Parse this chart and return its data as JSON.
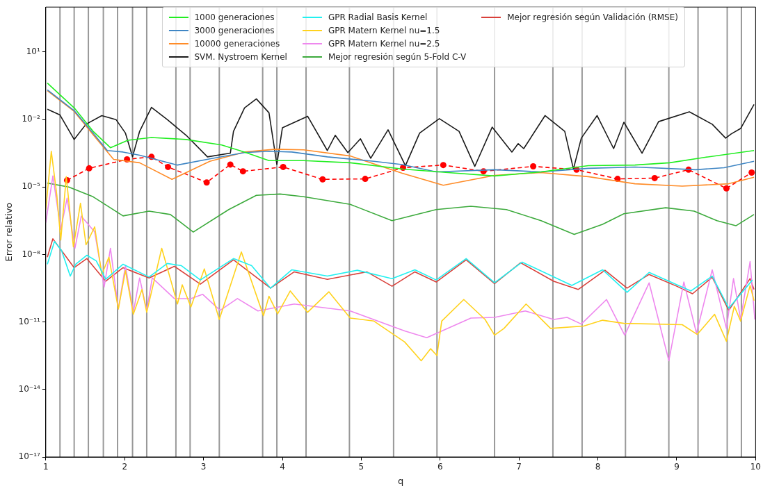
{
  "chart_data": {
    "type": "line",
    "xlabel": "q",
    "ylabel": "Error relativo",
    "log": "y",
    "grid": false,
    "legend": "top",
    "marker": "none",
    "line_style": "solid",
    "xlim": [
      1,
      10
    ],
    "xticks": [
      1,
      2,
      3,
      4,
      5,
      6,
      7,
      8,
      9,
      10
    ],
    "ylim": [
      1e-17,
      1000
    ],
    "yticks": [
      {
        "value": 1e-17,
        "label": "10⁻¹⁷"
      },
      {
        "value": 1e-14,
        "label": "10⁻¹⁴"
      },
      {
        "value": 1e-11,
        "label": "10⁻¹¹"
      },
      {
        "value": 1e-08,
        "label": "10⁻⁸"
      },
      {
        "value": 1e-05,
        "label": "10⁻⁵"
      },
      {
        "value": 0.01,
        "label": "10⁻²"
      },
      {
        "value": 10,
        "label": "10¹"
      }
    ],
    "ref_lines": [
      {
        "axis": "x",
        "value": 1.18,
        "color": "#999999"
      },
      {
        "axis": "x",
        "value": 1.36,
        "color": "#999999"
      },
      {
        "axis": "x",
        "value": 1.54,
        "color": "#999999"
      },
      {
        "axis": "x",
        "value": 1.73,
        "color": "#999999"
      },
      {
        "axis": "x",
        "value": 1.91,
        "color": "#999999"
      },
      {
        "axis": "x",
        "value": 2.1,
        "color": "#999999"
      },
      {
        "axis": "x",
        "value": 2.28,
        "color": "#999999"
      },
      {
        "axis": "x",
        "value": 2.65,
        "color": "#999999"
      },
      {
        "axis": "x",
        "value": 2.83,
        "color": "#999999"
      },
      {
        "axis": "x",
        "value": 3.2,
        "color": "#999999"
      },
      {
        "axis": "x",
        "value": 3.75,
        "color": "#999999"
      },
      {
        "axis": "x",
        "value": 3.93,
        "color": "#999999"
      },
      {
        "axis": "x",
        "value": 4.3,
        "color": "#999999"
      },
      {
        "axis": "x",
        "value": 4.85,
        "color": "#999999"
      },
      {
        "axis": "x",
        "value": 5.41,
        "color": "#999999"
      },
      {
        "axis": "x",
        "value": 5.96,
        "color": "#999999"
      },
      {
        "axis": "x",
        "value": 6.69,
        "color": "#999999"
      },
      {
        "axis": "x",
        "value": 7.43,
        "color": "#999999"
      },
      {
        "axis": "x",
        "value": 7.8,
        "color": "#999999"
      },
      {
        "axis": "x",
        "value": 8.35,
        "color": "#999999"
      },
      {
        "axis": "x",
        "value": 8.9,
        "color": "#999999"
      },
      {
        "axis": "x",
        "value": 9.27,
        "color": "#999999"
      },
      {
        "axis": "x",
        "value": 9.64,
        "color": "#999999"
      },
      {
        "axis": "x",
        "value": 9.82,
        "color": "#999999"
      }
    ],
    "series": [
      {
        "name": "1000 generaciones",
        "color": "#22ee22",
        "x": [
          1.02,
          1.36,
          1.6,
          1.82,
          2.04,
          2.34,
          2.78,
          3.23,
          3.52,
          3.83,
          4.27,
          4.86,
          5.53,
          6.1,
          6.69,
          7.28,
          7.88,
          8.47,
          8.91,
          9.36,
          9.98
        ],
        "values": [
          0.42,
          0.033,
          0.003,
          0.00056,
          0.0012,
          0.0016,
          0.0013,
          0.00074,
          0.00036,
          0.00015,
          0.00015,
          0.00012,
          6.3e-05,
          4.4e-05,
          3.1e-05,
          4.7e-05,
          8.9e-05,
          9.5e-05,
          0.00012,
          0.00021,
          0.00042
        ]
      },
      {
        "name": "3000 generaciones",
        "color": "#3f86c4",
        "x": [
          1.02,
          1.36,
          1.6,
          1.78,
          1.98,
          2.19,
          2.67,
          3.08,
          3.52,
          3.83,
          4.12,
          4.57,
          5.16,
          5.52,
          5.95,
          6.69,
          7.28,
          7.88,
          8.47,
          9.24,
          9.6,
          9.98
        ],
        "values": [
          0.21,
          0.025,
          0.0025,
          0.00042,
          0.00036,
          0.00026,
          9.5e-05,
          0.00018,
          0.00034,
          0.00039,
          0.00036,
          0.00022,
          0.00014,
          0.0001,
          4.7e-05,
          5.9e-05,
          4.7e-05,
          6.8e-05,
          7.8e-05,
          5.9e-05,
          7.2e-05,
          0.00014
        ]
      },
      {
        "name": "10000 generaciones",
        "color": "#ff8c28",
        "x": [
          1.02,
          1.36,
          1.6,
          1.86,
          2.19,
          2.6,
          2.78,
          3.08,
          3.52,
          3.91,
          4.27,
          4.86,
          5.52,
          6.04,
          6.69,
          7.28,
          7.88,
          8.47,
          9.07,
          9.66,
          9.98
        ],
        "values": [
          0.19,
          0.023,
          0.0021,
          0.00017,
          0.00012,
          2.2e-05,
          4.4e-05,
          0.00014,
          0.00036,
          0.00048,
          0.00045,
          0.00024,
          4.1e-05,
          1.2e-05,
          3.3e-05,
          4.4e-05,
          2.9e-05,
          1.4e-05,
          1.1e-05,
          1.4e-05,
          2.7e-05
        ]
      },
      {
        "name": "SVM. Nystroem Kernel",
        "color": "#1a1a1a",
        "x": [
          1.02,
          1.18,
          1.36,
          1.51,
          1.71,
          1.89,
          2.01,
          2.1,
          2.19,
          2.34,
          2.54,
          2.78,
          3.05,
          3.34,
          3.38,
          3.52,
          3.67,
          3.83,
          3.93,
          4.0,
          4.32,
          4.57,
          4.67,
          4.83,
          4.99,
          5.12,
          5.34,
          5.56,
          5.74,
          5.99,
          6.24,
          6.44,
          6.66,
          6.91,
          6.99,
          7.06,
          7.33,
          7.58,
          7.69,
          7.79,
          7.99,
          8.2,
          8.33,
          8.56,
          8.77,
          9.16,
          9.45,
          9.62,
          9.69,
          9.81,
          9.98
        ],
        "values": [
          0.029,
          0.016,
          0.0013,
          0.0062,
          0.015,
          0.01,
          0.0025,
          0.00022,
          0.003,
          0.035,
          0.01,
          0.002,
          0.00022,
          0.00032,
          0.003,
          0.033,
          0.083,
          0.02,
          0.0001,
          0.0043,
          0.014,
          0.00042,
          0.002,
          0.00034,
          0.0014,
          0.00019,
          0.0035,
          8.9e-05,
          0.0025,
          0.011,
          0.003,
          8.3e-05,
          0.0046,
          0.00036,
          0.00085,
          0.00051,
          0.015,
          0.003,
          6.3e-05,
          0.0015,
          0.015,
          0.00051,
          0.0076,
          0.00032,
          0.0081,
          0.022,
          0.0062,
          0.0015,
          0.0023,
          0.004,
          0.047
        ]
      },
      {
        "name": "GPR Radial Basis Kernel",
        "color": "#22f0f0",
        "x": [
          1.02,
          1.11,
          1.2,
          1.31,
          1.38,
          1.52,
          1.64,
          1.76,
          1.98,
          2.31,
          2.54,
          2.72,
          2.96,
          3.38,
          3.61,
          3.85,
          4.12,
          4.57,
          4.95,
          5.39,
          5.68,
          5.95,
          6.33,
          6.69,
          7.04,
          7.67,
          8.06,
          8.37,
          8.65,
          9.18,
          9.45,
          9.66,
          9.96
        ],
        "values": [
          3.7e-09,
          3.8e-08,
          1.5e-08,
          1.1e-09,
          3.7e-09,
          9.3e-09,
          5.2e-09,
          7.9e-10,
          3.7e-09,
          1e-09,
          4e-09,
          3.2e-09,
          7.4e-10,
          6.6e-09,
          3.2e-09,
          3.2e-10,
          2.1e-09,
          1.1e-09,
          2e-09,
          8.5e-10,
          2.1e-09,
          7.4e-10,
          6.6e-09,
          5.6e-10,
          4.6e-09,
          4.2e-10,
          2.1e-09,
          2.1e-10,
          1.6e-09,
          2.4e-10,
          1.1e-09,
          4.1e-11,
          7.4e-10
        ]
      },
      {
        "name": "GPR Matern Kernel nu=1.5",
        "color": "#ffd21e",
        "x": [
          1.0,
          1.07,
          1.14,
          1.19,
          1.26,
          1.35,
          1.44,
          1.51,
          1.62,
          1.71,
          1.8,
          1.92,
          2.01,
          2.11,
          2.22,
          2.28,
          2.47,
          2.67,
          2.73,
          2.84,
          3.01,
          3.2,
          3.48,
          3.76,
          3.83,
          3.94,
          4.1,
          4.32,
          4.59,
          4.86,
          5.16,
          5.55,
          5.76,
          5.88,
          5.96,
          6.02,
          6.3,
          6.57,
          6.69,
          6.81,
          7.09,
          7.4,
          7.82,
          8.06,
          8.33,
          9.07,
          9.26,
          9.48,
          9.63,
          9.73,
          9.81,
          9.93,
          9.98
        ],
        "values": [
          1e-06,
          0.00039,
          4.3e-06,
          4.4e-08,
          2.9e-05,
          2.2e-08,
          1.9e-06,
          2.7e-08,
          1.7e-07,
          1.3e-09,
          7.6e-09,
          3.8e-11,
          1.9e-09,
          2.2e-11,
          2.8e-10,
          2.7e-11,
          1.9e-08,
          6.3e-11,
          4.5e-10,
          4.7e-11,
          2.3e-09,
          1.3e-11,
          1.3e-08,
          1.9e-11,
          1.4e-10,
          2.3e-11,
          2.4e-10,
          2.7e-11,
          2.2e-10,
          1.5e-11,
          1.1e-11,
          1.3e-12,
          1.9e-13,
          6.5e-13,
          3.2e-13,
          1.1e-11,
          1e-10,
          1.3e-11,
          2.6e-12,
          5.2e-12,
          6.3e-11,
          5.2e-12,
          6.6e-12,
          1.2e-11,
          8.7e-12,
          7.6e-12,
          2.8e-12,
          2.2e-11,
          1.4e-12,
          5e-11,
          1.1e-11,
          4.2e-10,
          8.9e-11
        ]
      },
      {
        "name": "GPR Matern Kernel nu=2.5",
        "color": "#ee88ee",
        "x": [
          1.0,
          1.09,
          1.19,
          1.27,
          1.37,
          1.45,
          1.62,
          1.74,
          1.82,
          1.92,
          2.01,
          2.11,
          2.19,
          2.28,
          2.35,
          2.63,
          2.84,
          2.99,
          3.21,
          3.43,
          3.69,
          4.15,
          4.86,
          5.55,
          5.83,
          6.39,
          6.69,
          7.08,
          7.44,
          7.61,
          7.79,
          8.11,
          8.34,
          8.65,
          8.9,
          9.09,
          9.25,
          9.45,
          9.63,
          9.72,
          9.81,
          9.93,
          9.99
        ],
        "values": [
          2.6e-07,
          3.1e-05,
          1.3e-07,
          3.2e-06,
          1.9e-08,
          5.1e-07,
          1e-07,
          3.6e-10,
          1.9e-08,
          3.8e-11,
          3.2e-09,
          2.7e-11,
          9.1e-10,
          3.3e-11,
          9.1e-10,
          1.1e-10,
          1.1e-10,
          1.7e-10,
          3.3e-11,
          1.1e-10,
          3.1e-11,
          6.3e-11,
          3.1e-11,
          4e-12,
          2e-12,
          1.5e-11,
          1.6e-11,
          3.1e-11,
          1.3e-11,
          1.6e-11,
          8.1e-12,
          1e-10,
          2.6e-12,
          5.5e-10,
          1.9e-13,
          6e-10,
          3.2e-12,
          2.1e-09,
          5.2e-12,
          8.5e-10,
          1.3e-11,
          4.9e-09,
          1.3e-11
        ]
      },
      {
        "name": "Mejor regresión según 5-Fold C-V",
        "color": "#3caa3c",
        "x": [
          1.02,
          1.29,
          1.6,
          1.98,
          2.31,
          2.58,
          2.87,
          3.32,
          3.67,
          3.97,
          4.27,
          4.86,
          5.39,
          5.95,
          6.39,
          6.84,
          7.28,
          7.7,
          8.06,
          8.33,
          8.86,
          9.22,
          9.51,
          9.75,
          9.98
        ],
        "values": [
          1.5e-05,
          1e-05,
          3.7e-06,
          5.2e-07,
          8.5e-07,
          6e-07,
          1e-07,
          1e-06,
          4.3e-06,
          4.9e-06,
          3.7e-06,
          1.7e-06,
          3.2e-07,
          1e-06,
          1.4e-06,
          1e-06,
          3.2e-07,
          7.8e-08,
          2.2e-07,
          6.5e-07,
          1.2e-06,
          8.5e-07,
          3.2e-07,
          1.9e-07,
          6e-07
        ]
      },
      {
        "name": "Mejor regresión según Validación (RMSE)",
        "color": "#d9403a",
        "x": [
          1.02,
          1.09,
          1.36,
          1.52,
          1.76,
          1.98,
          2.31,
          2.63,
          2.96,
          3.38,
          3.85,
          4.15,
          4.57,
          5.07,
          5.39,
          5.68,
          5.95,
          6.33,
          6.69,
          7.02,
          7.44,
          7.75,
          8.09,
          8.37,
          8.65,
          9.0,
          9.2,
          9.45,
          9.66,
          9.93,
          9.98
        ],
        "values": [
          7.6e-09,
          5e-08,
          2.6e-09,
          6.6e-09,
          6.5e-10,
          2.6e-09,
          9.1e-10,
          3e-09,
          4.8e-10,
          5.8e-09,
          3.2e-10,
          1.7e-09,
          7.9e-10,
          1.7e-09,
          3.9e-10,
          1.7e-09,
          6e-10,
          5.8e-09,
          5.1e-10,
          4.3e-09,
          6.5e-10,
          2.8e-10,
          2e-09,
          3.2e-10,
          1.3e-09,
          3.9e-10,
          1.8e-10,
          9.8e-10,
          3.3e-11,
          8.5e-10,
          2.8e-10
        ]
      },
      {
        "color": "#ff0000",
        "marker": "circle",
        "line_style": "dashed",
        "x": [
          1.27,
          1.55,
          2.03,
          2.34,
          2.55,
          3.04,
          3.34,
          3.5,
          4.01,
          4.51,
          5.05,
          5.53,
          6.04,
          6.55,
          7.18,
          7.73,
          8.25,
          8.72,
          9.15,
          9.63,
          9.95
        ],
        "values": [
          2e-05,
          6.8e-05,
          0.00017,
          0.00022,
          7.8e-05,
          1.6e-05,
          0.0001,
          5e-05,
          7.8e-05,
          2.2e-05,
          2.3e-05,
          7.2e-05,
          9.5e-05,
          5e-05,
          8.3e-05,
          5.9e-05,
          2.3e-05,
          2.5e-05,
          5.9e-05,
          8.7e-06,
          4.4e-05
        ]
      }
    ]
  }
}
